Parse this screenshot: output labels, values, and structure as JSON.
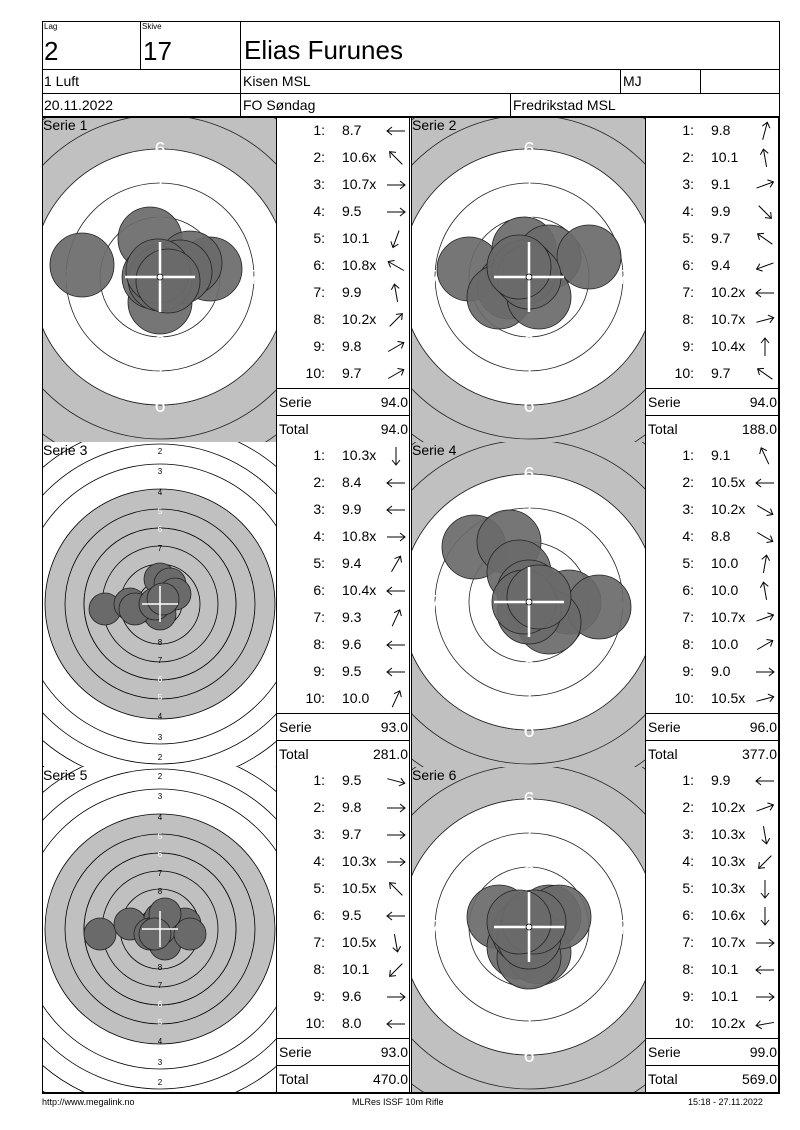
{
  "header": {
    "lag_caption": "Lag",
    "lag_value": "2",
    "skive_caption": "Skive",
    "skive_value": "17",
    "shooter_name": "Elias Furunes",
    "class": "1 Luft",
    "club": "Kisen MSL",
    "mark": "MJ",
    "date": "20.11.2022",
    "event": "FO Søndag",
    "host": "Fredrikstad MSL"
  },
  "labels": {
    "serie": "Serie",
    "total": "Total"
  },
  "series": [
    {
      "title": "Serie 1",
      "target": "rifle",
      "shots": [
        {
          "n": "1:",
          "v": "8.7",
          "dir": 180
        },
        {
          "n": "2:",
          "v": "10.6x",
          "dir": 135
        },
        {
          "n": "3:",
          "v": "10.7x",
          "dir": 0
        },
        {
          "n": "4:",
          "v": "9.5",
          "dir": 0
        },
        {
          "n": "5:",
          "v": "10.1",
          "dir": 250
        },
        {
          "n": "6:",
          "v": "10.8x",
          "dir": 150
        },
        {
          "n": "7:",
          "v": "9.9",
          "dir": 100
        },
        {
          "n": "8:",
          "v": "10.2x",
          "dir": 45
        },
        {
          "n": "9:",
          "v": "9.8",
          "dir": 30
        },
        {
          "n": "10:",
          "v": "9.7",
          "dir": 30
        }
      ],
      "serie": "94.0",
      "total": "94.0"
    },
    {
      "title": "Serie 2",
      "target": "rifle",
      "shots": [
        {
          "n": "1:",
          "v": "9.8",
          "dir": 75
        },
        {
          "n": "2:",
          "v": "10.1",
          "dir": 100
        },
        {
          "n": "3:",
          "v": "9.1",
          "dir": 20
        },
        {
          "n": "4:",
          "v": "9.9",
          "dir": 315
        },
        {
          "n": "5:",
          "v": "9.7",
          "dir": 145
        },
        {
          "n": "6:",
          "v": "9.4",
          "dir": 200
        },
        {
          "n": "7:",
          "v": "10.2x",
          "dir": 180
        },
        {
          "n": "8:",
          "v": "10.7x",
          "dir": 15
        },
        {
          "n": "9:",
          "v": "10.4x",
          "dir": 90
        },
        {
          "n": "10:",
          "v": "9.7",
          "dir": 145
        }
      ],
      "serie": "94.0",
      "total": "188.0"
    },
    {
      "title": "Serie 3",
      "target": "small",
      "shots": [
        {
          "n": "1:",
          "v": "10.3x",
          "dir": 270
        },
        {
          "n": "2:",
          "v": "8.4",
          "dir": 180
        },
        {
          "n": "3:",
          "v": "9.9",
          "dir": 180
        },
        {
          "n": "4:",
          "v": "10.8x",
          "dir": 0
        },
        {
          "n": "5:",
          "v": "9.4",
          "dir": 60
        },
        {
          "n": "6:",
          "v": "10.4x",
          "dir": 180
        },
        {
          "n": "7:",
          "v": "9.3",
          "dir": 65
        },
        {
          "n": "8:",
          "v": "9.6",
          "dir": 180
        },
        {
          "n": "9:",
          "v": "9.5",
          "dir": 180
        },
        {
          "n": "10:",
          "v": "10.0",
          "dir": 65
        }
      ],
      "serie": "93.0",
      "total": "281.0"
    },
    {
      "title": "Serie 4",
      "target": "rifle",
      "shots": [
        {
          "n": "1:",
          "v": "9.1",
          "dir": 115
        },
        {
          "n": "2:",
          "v": "10.5x",
          "dir": 180
        },
        {
          "n": "3:",
          "v": "10.2x",
          "dir": 330
        },
        {
          "n": "4:",
          "v": "8.8",
          "dir": 330
        },
        {
          "n": "5:",
          "v": "10.0",
          "dir": 80
        },
        {
          "n": "6:",
          "v": "10.0",
          "dir": 100
        },
        {
          "n": "7:",
          "v": "10.7x",
          "dir": 20
        },
        {
          "n": "8:",
          "v": "10.0",
          "dir": 30
        },
        {
          "n": "9:",
          "v": "9.0",
          "dir": 0
        },
        {
          "n": "10:",
          "v": "10.5x",
          "dir": 15
        }
      ],
      "serie": "96.0",
      "total": "377.0"
    },
    {
      "title": "Serie 5",
      "target": "small",
      "shots": [
        {
          "n": "1:",
          "v": "9.5",
          "dir": 345
        },
        {
          "n": "2:",
          "v": "9.8",
          "dir": 0
        },
        {
          "n": "3:",
          "v": "9.7",
          "dir": 0
        },
        {
          "n": "4:",
          "v": "10.3x",
          "dir": 0
        },
        {
          "n": "5:",
          "v": "10.5x",
          "dir": 135
        },
        {
          "n": "6:",
          "v": "9.5",
          "dir": 180
        },
        {
          "n": "7:",
          "v": "10.5x",
          "dir": 280
        },
        {
          "n": "8:",
          "v": "10.1",
          "dir": 225
        },
        {
          "n": "9:",
          "v": "9.6",
          "dir": 0
        },
        {
          "n": "10:",
          "v": "8.0",
          "dir": 180
        }
      ],
      "serie": "93.0",
      "total": "470.0"
    },
    {
      "title": "Serie 6",
      "target": "rifle",
      "shots": [
        {
          "n": "1:",
          "v": "9.9",
          "dir": 180
        },
        {
          "n": "2:",
          "v": "10.2x",
          "dir": 20
        },
        {
          "n": "3:",
          "v": "10.3x",
          "dir": 280
        },
        {
          "n": "4:",
          "v": "10.3x",
          "dir": 225
        },
        {
          "n": "5:",
          "v": "10.3x",
          "dir": 270
        },
        {
          "n": "6:",
          "v": "10.6x",
          "dir": 270
        },
        {
          "n": "7:",
          "v": "10.7x",
          "dir": 0
        },
        {
          "n": "8:",
          "v": "10.1",
          "dir": 180
        },
        {
          "n": "9:",
          "v": "10.1",
          "dir": 0
        },
        {
          "n": "10:",
          "v": "10.2x",
          "dir": 190
        }
      ],
      "serie": "99.0",
      "total": "569.0"
    }
  ],
  "footer": {
    "url": "http://www.megalink.no",
    "software": "MLRes ISSF 10m Rifle",
    "timestamp": "15:18 - 27.11.2022"
  }
}
